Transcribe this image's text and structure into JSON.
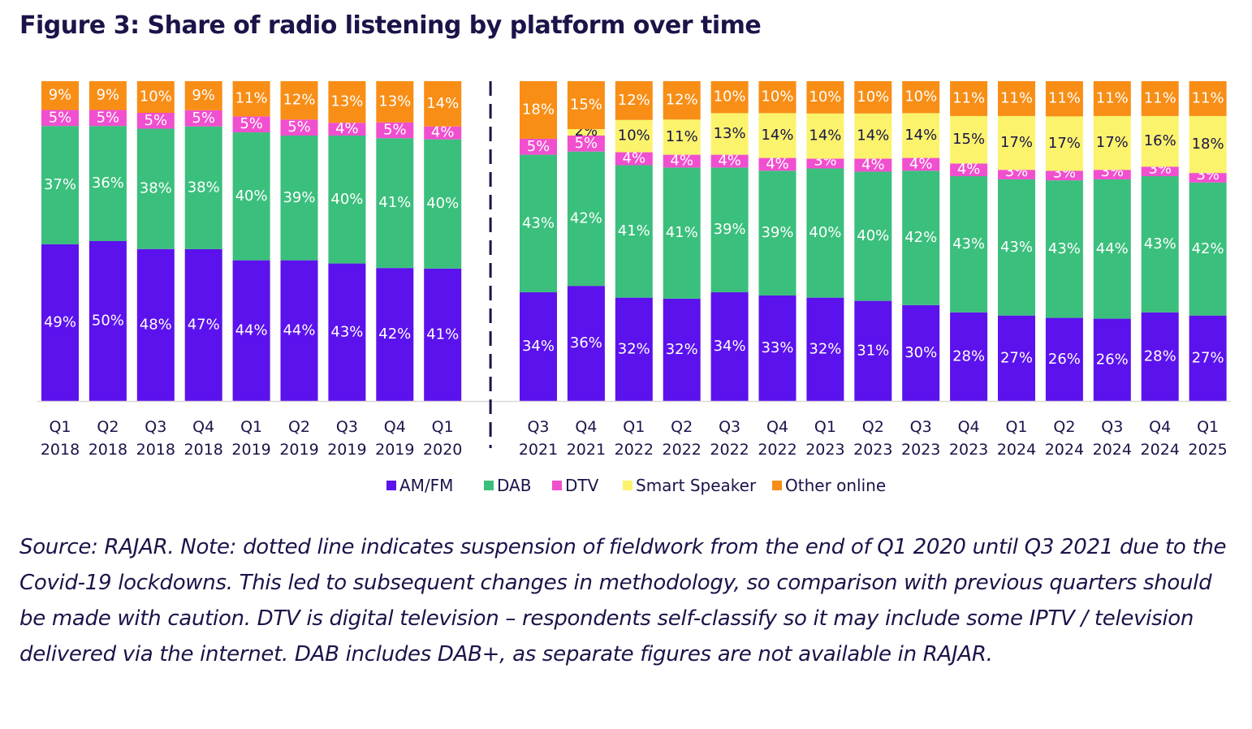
{
  "title": "Figure 3: Share of radio listening by platform over time",
  "note": "Source: RAJAR. Note: dotted line indicates suspension of fieldwork from the end of Q1 2020 until Q3 2021 due to the Covid-19 lockdowns. This led to subsequent changes in methodology, so comparison with previous quarters should be made with caution. DTV is digital television – respondents self-classify so it may include some IPTV / television delivered via the internet. DAB includes DAB+, as separate figures are not available in RAJAR.",
  "chart_data": {
    "type": "bar",
    "stacked": true,
    "title": "Share of radio listening by platform over time",
    "xlabel": "",
    "ylabel": "",
    "ylim": [
      0,
      100
    ],
    "grid": false,
    "legend_position": "bottom",
    "categories": [
      "Q1 2018",
      "Q2 2018",
      "Q3 2018",
      "Q4 2018",
      "Q1 2019",
      "Q2 2019",
      "Q3 2019",
      "Q4 2019",
      "Q1 2020",
      "Q3 2021",
      "Q4 2021",
      "Q1 2022",
      "Q2 2022",
      "Q3 2022",
      "Q4 2022",
      "Q1 2023",
      "Q2 2023",
      "Q3 2023",
      "Q4 2023",
      "Q1 2024",
      "Q2 2024",
      "Q3 2024",
      "Q4 2024",
      "Q1 2025"
    ],
    "category_quarters": [
      "Q1",
      "Q2",
      "Q3",
      "Q4",
      "Q1",
      "Q2",
      "Q3",
      "Q4",
      "Q1",
      "Q3",
      "Q4",
      "Q1",
      "Q2",
      "Q3",
      "Q4",
      "Q1",
      "Q2",
      "Q3",
      "Q4",
      "Q1",
      "Q2",
      "Q3",
      "Q4",
      "Q1"
    ],
    "category_years": [
      "2018",
      "2018",
      "2018",
      "2018",
      "2019",
      "2019",
      "2019",
      "2019",
      "2020",
      "2021",
      "2021",
      "2022",
      "2022",
      "2022",
      "2022",
      "2023",
      "2023",
      "2023",
      "2023",
      "2024",
      "2024",
      "2024",
      "2024",
      "2025"
    ],
    "break_after_index": 8,
    "break_annotation": "dotted line indicates suspension of fieldwork",
    "series": [
      {
        "name": "AM/FM",
        "color": "#5b12ec",
        "values": [
          49,
          50,
          48,
          47,
          44,
          44,
          43,
          42,
          41,
          34,
          36,
          32,
          32,
          34,
          33,
          32,
          31,
          30,
          28,
          27,
          26,
          26,
          28,
          27
        ]
      },
      {
        "name": "DAB",
        "color": "#3bbf7c",
        "values": [
          37,
          36,
          38,
          38,
          40,
          39,
          40,
          41,
          40,
          43,
          42,
          41,
          41,
          39,
          39,
          40,
          40,
          42,
          43,
          43,
          43,
          44,
          43,
          42
        ]
      },
      {
        "name": "DTV",
        "color": "#f04fcf",
        "values": [
          5,
          5,
          5,
          5,
          5,
          5,
          4,
          5,
          4,
          5,
          5,
          4,
          4,
          4,
          4,
          3,
          4,
          4,
          4,
          3,
          3,
          3,
          3,
          3
        ]
      },
      {
        "name": "Smart Speaker",
        "color": "#fbf36c",
        "values": [
          0,
          0,
          0,
          0,
          0,
          0,
          0,
          0,
          0,
          0,
          2,
          10,
          11,
          13,
          14,
          14,
          14,
          14,
          15,
          17,
          17,
          17,
          16,
          18
        ]
      },
      {
        "name": "Other online",
        "color": "#f88e16",
        "values": [
          9,
          9,
          10,
          9,
          11,
          12,
          13,
          13,
          14,
          18,
          15,
          12,
          12,
          10,
          10,
          10,
          10,
          10,
          11,
          11,
          11,
          11,
          11,
          11
        ]
      }
    ]
  }
}
